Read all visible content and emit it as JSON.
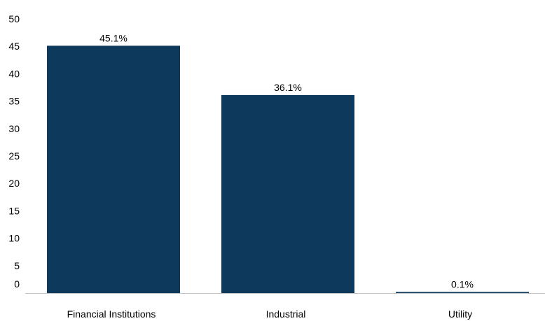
{
  "chart_data": {
    "type": "bar",
    "categories": [
      "Financial Institutions",
      "Industrial",
      "Utility"
    ],
    "values": [
      45.1,
      36.1,
      0.1
    ],
    "data_labels": [
      "45.1%",
      "36.1%",
      "0.1%"
    ],
    "title": "",
    "xlabel": "",
    "ylabel": "",
    "ylim": [
      0,
      50
    ],
    "yticks": [
      0,
      5,
      10,
      15,
      20,
      25,
      30,
      35,
      40,
      45,
      50
    ],
    "grid": false,
    "bar_color": "#0d3a5c",
    "axis_color": "#bfbfbf"
  }
}
